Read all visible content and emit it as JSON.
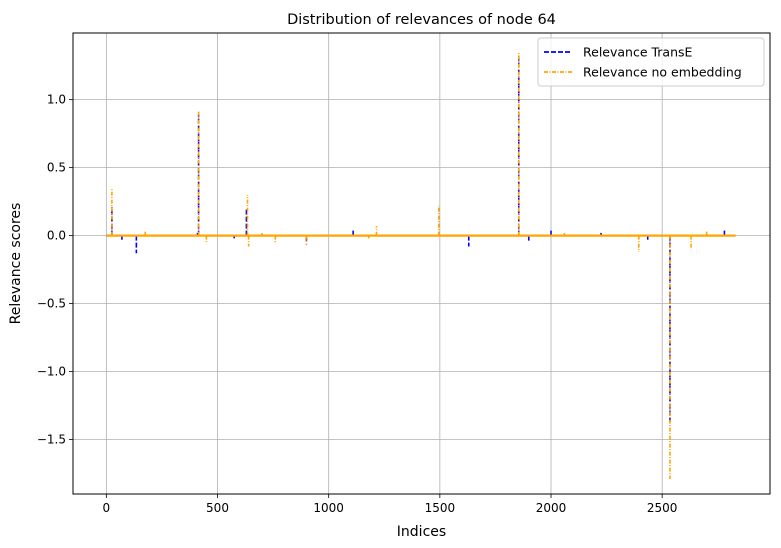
{
  "chart_data": {
    "type": "line",
    "title": "Distribution of relevances of node 64",
    "xlabel": "Indices",
    "ylabel": "Relevance scores",
    "xlim": [
      -150,
      2985
    ],
    "ylim": [
      -1.9,
      1.49
    ],
    "xticks": [
      0,
      500,
      1000,
      1500,
      2000,
      2500
    ],
    "xtick_labels": [
      "0",
      "500",
      "1000",
      "1500",
      "2000",
      "2500"
    ],
    "yticks": [
      -1.5,
      -1.0,
      -0.5,
      0.0,
      0.5,
      1.0
    ],
    "ytick_labels": [
      "−1.5",
      "−1.0",
      "−0.5",
      "0.0",
      "0.5",
      "1.0"
    ],
    "grid": true,
    "legend_position": "top-right",
    "x_range": [
      0,
      2830
    ],
    "series": [
      {
        "name": "Relevance TransE",
        "color": "#0000ff",
        "linestyle": "dashed",
        "spikes": [
          [
            25,
            0.21
          ],
          [
            70,
            -0.03
          ],
          [
            135,
            -0.13
          ],
          [
            410,
            0.02
          ],
          [
            415,
            0.89
          ],
          [
            575,
            -0.02
          ],
          [
            630,
            0.2
          ],
          [
            900,
            -0.05
          ],
          [
            1110,
            0.05
          ],
          [
            1630,
            -0.08
          ],
          [
            1855,
            1.33
          ],
          [
            1900,
            -0.05
          ],
          [
            2000,
            0.04
          ],
          [
            2225,
            0.02
          ],
          [
            2435,
            -0.03
          ],
          [
            2535,
            -1.37
          ],
          [
            2780,
            0.05
          ]
        ]
      },
      {
        "name": "Relevance no embedding",
        "color": "#ffa500",
        "linestyle": "dashdot",
        "spikes": [
          [
            25,
            0.35
          ],
          [
            175,
            0.03
          ],
          [
            415,
            0.92
          ],
          [
            450,
            -0.05
          ],
          [
            635,
            0.3
          ],
          [
            640,
            -0.08
          ],
          [
            700,
            0.02
          ],
          [
            760,
            -0.06
          ],
          [
            900,
            -0.07
          ],
          [
            1180,
            -0.02
          ],
          [
            1215,
            0.07
          ],
          [
            1495,
            0.22
          ],
          [
            1855,
            1.35
          ],
          [
            2060,
            0.02
          ],
          [
            2395,
            -0.12
          ],
          [
            2535,
            -1.79
          ],
          [
            2630,
            -0.1
          ],
          [
            2700,
            0.03
          ]
        ]
      }
    ]
  }
}
